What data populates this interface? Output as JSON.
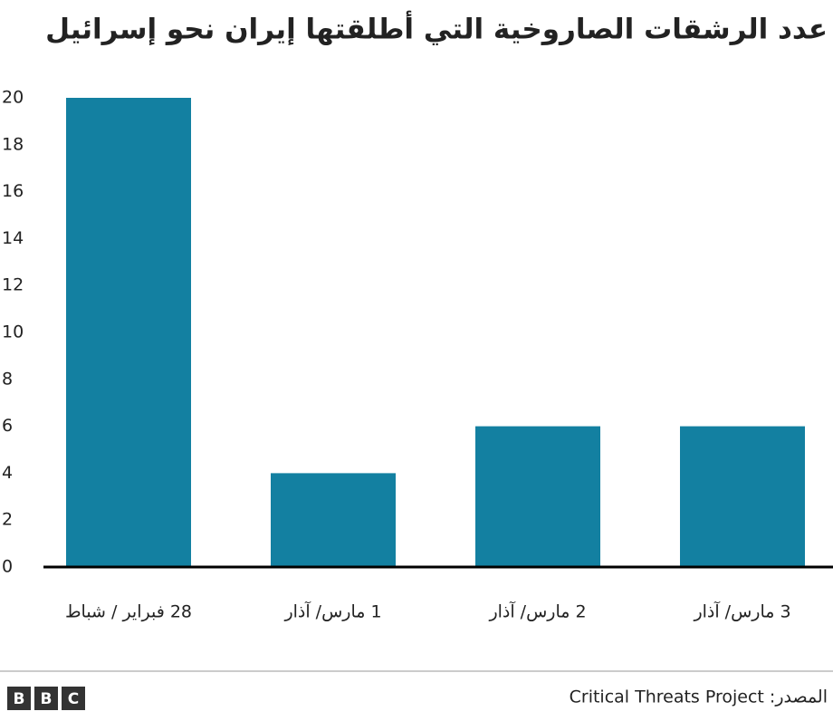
{
  "chart_data": {
    "type": "bar",
    "title": "عدد الرشقات الصاروخية التي أطلقتها إيران نحو إسرائيل",
    "categories": [
      "28 فبراير / شباط",
      "1 مارس/ آذار",
      "2 مارس/ آذار",
      "3 مارس/ آذار"
    ],
    "values": [
      20,
      4,
      6,
      6
    ],
    "color": "#1380a1",
    "ylim": [
      0,
      20
    ],
    "yticks": [
      0,
      2,
      4,
      6,
      8,
      10,
      12,
      14,
      16,
      18,
      20
    ],
    "grid": false,
    "source": "المصدر: Critical Threats Project",
    "logo": [
      "B",
      "B",
      "C"
    ]
  }
}
